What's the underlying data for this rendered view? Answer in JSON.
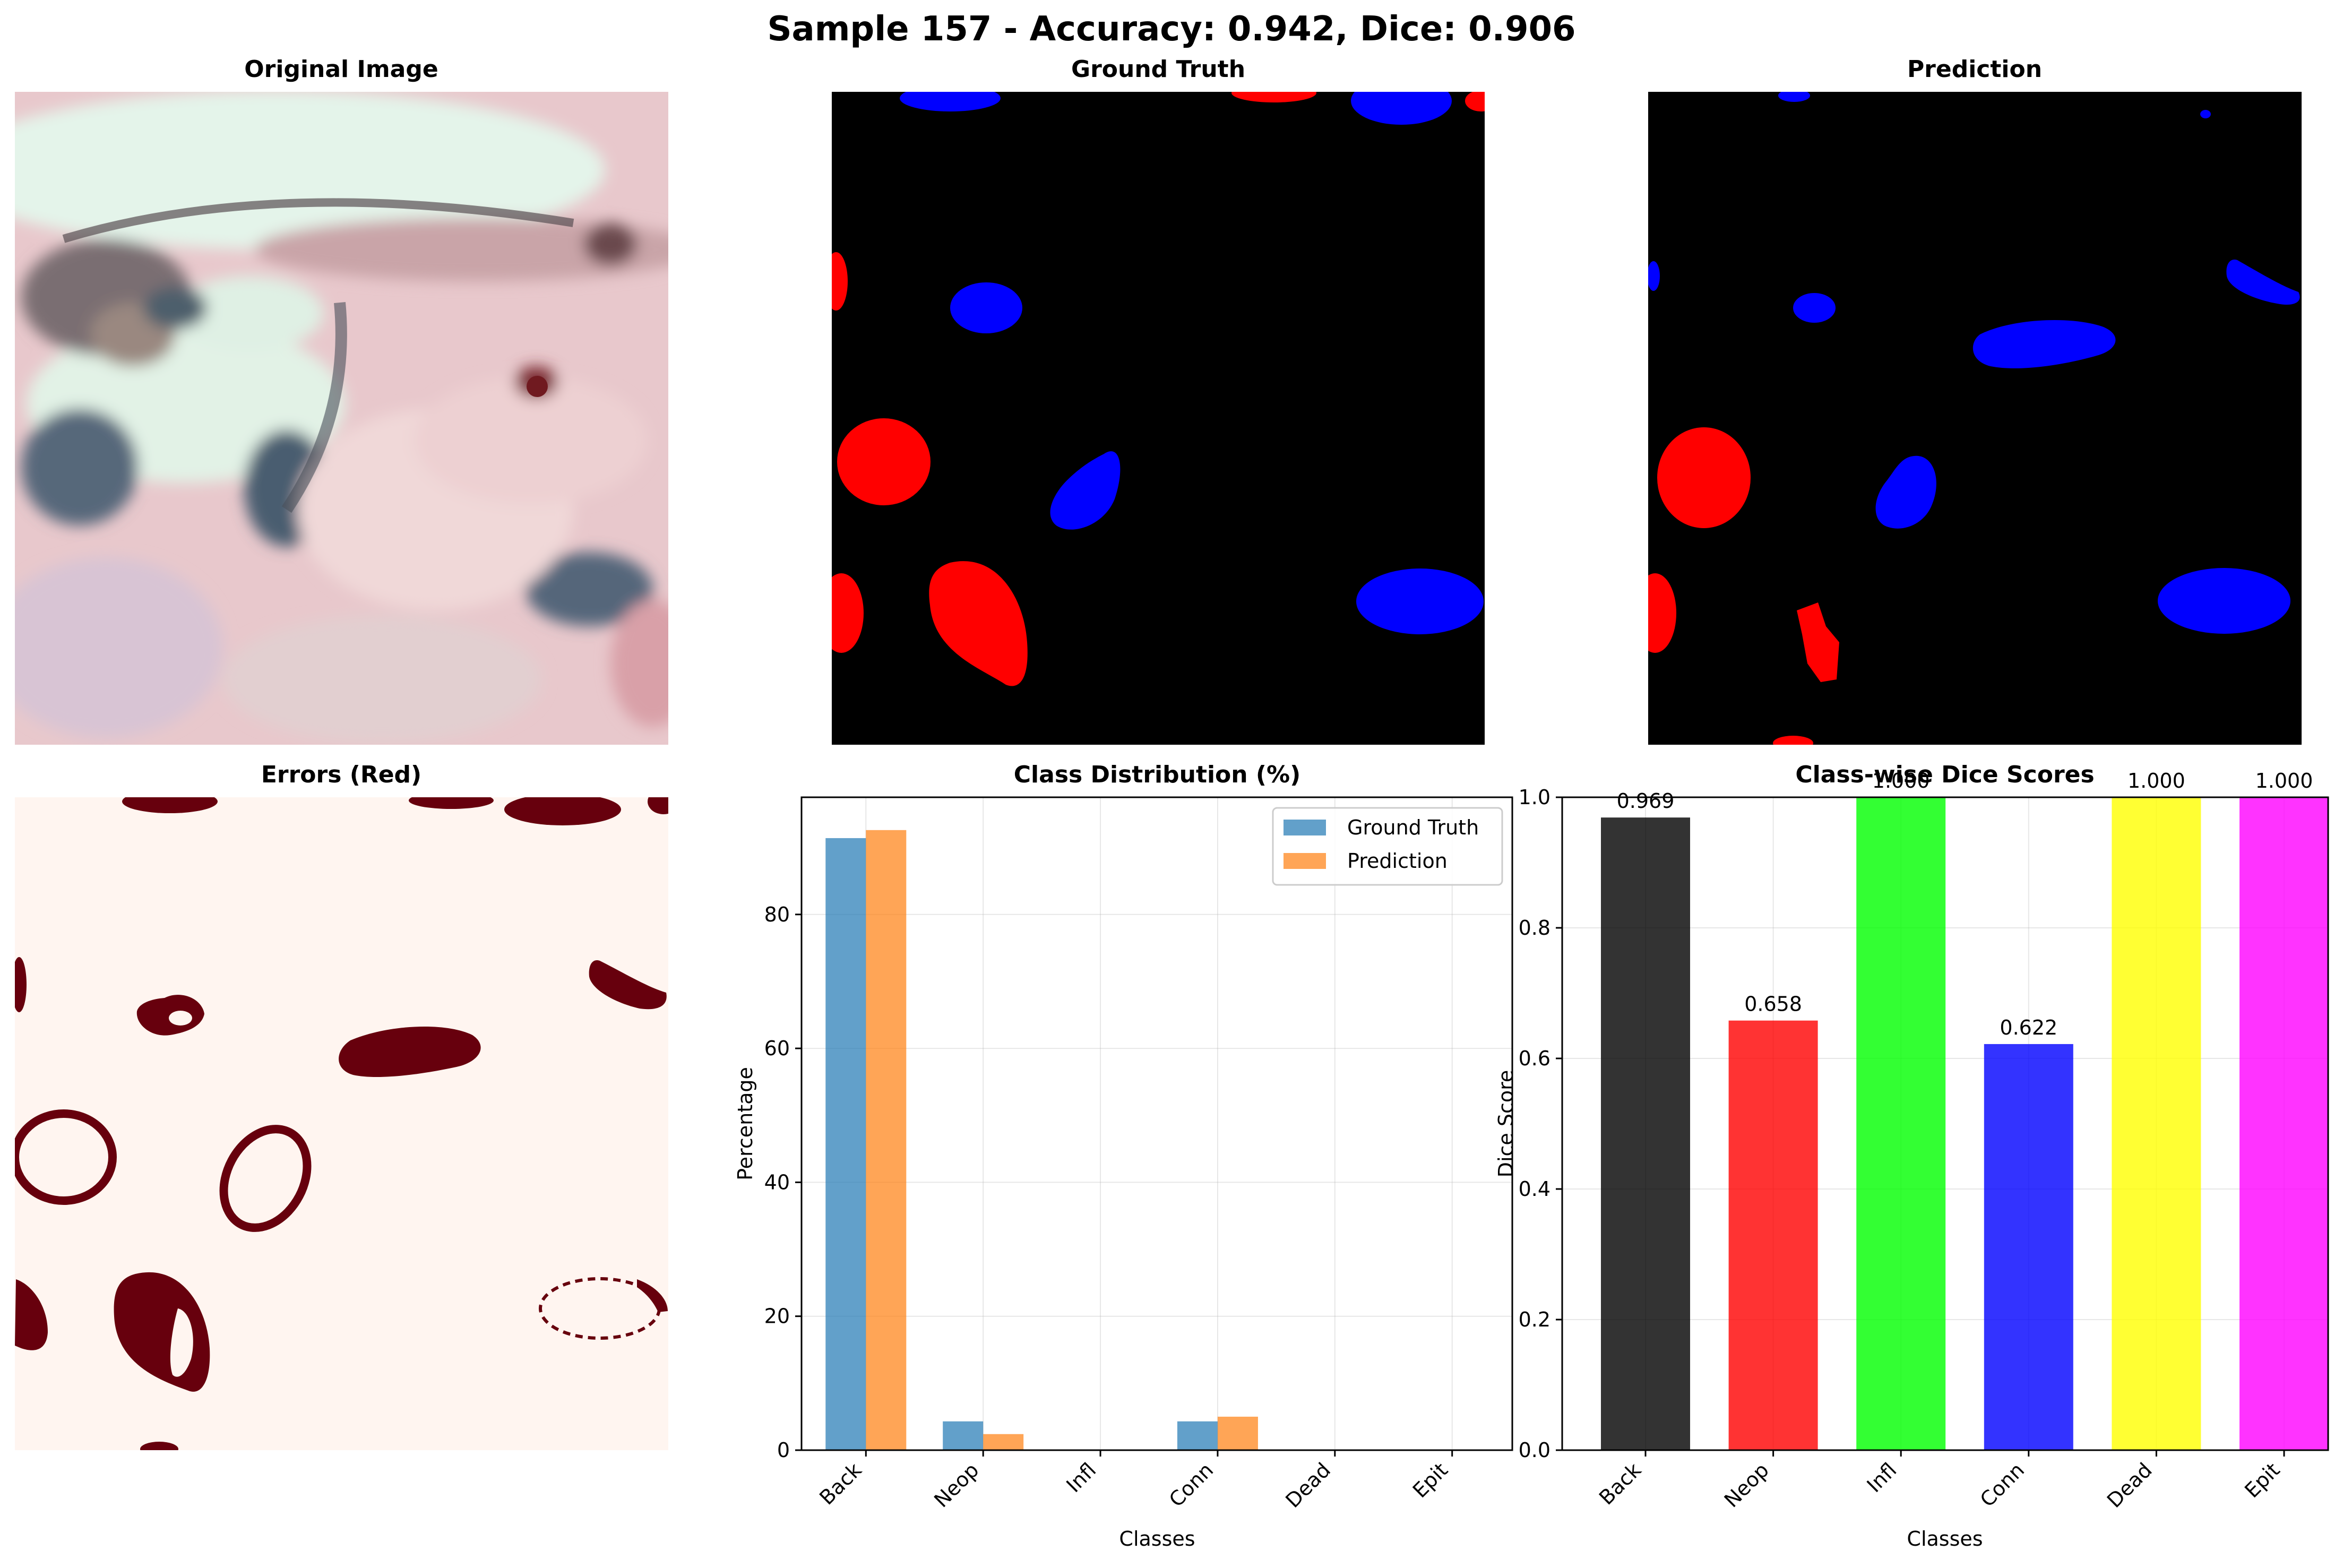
{
  "figure": {
    "suptitle": "Sample 157 - Accuracy: 0.942, Dice: 0.906"
  },
  "panels": {
    "original": {
      "title": "Original Image"
    },
    "ground_truth": {
      "title": "Ground Truth"
    },
    "prediction": {
      "title": "Prediction"
    },
    "errors": {
      "title": "Errors (Red)"
    }
  },
  "colors": {
    "background_class": "#000000",
    "neoplastic": "#ff0000",
    "connective": "#0000ff",
    "error_bg": "#fff5f0",
    "error_fg": "#67000d",
    "tissue_pink": "#e8c4c4",
    "tissue_mint": "#e6f5ea",
    "tissue_blue": "#5a6a7a"
  },
  "chart_data": [
    {
      "type": "bar",
      "title": "Class Distribution (%)",
      "xlabel": "Classes",
      "ylabel": "Percentage",
      "categories": [
        "Back",
        "Neop",
        "Infl",
        "Conn",
        "Dead",
        "Epit"
      ],
      "ylim": [
        0,
        97.5
      ],
      "yticks": [
        0,
        20,
        40,
        60,
        80
      ],
      "grid": true,
      "legend_position": "upper right",
      "series": [
        {
          "name": "Ground Truth",
          "color": "#1f77b4",
          "values": [
            91.4,
            4.3,
            0.0,
            4.3,
            0.0,
            0.0
          ]
        },
        {
          "name": "Prediction",
          "color": "#ff7f0e",
          "values": [
            92.6,
            2.4,
            0.0,
            5.0,
            0.0,
            0.0
          ]
        }
      ]
    },
    {
      "type": "bar",
      "title": "Class-wise Dice Scores",
      "xlabel": "Classes",
      "ylabel": "Dice Score",
      "categories": [
        "Back",
        "Neop",
        "Infl",
        "Conn",
        "Dead",
        "Epit"
      ],
      "values": [
        0.969,
        0.658,
        1.0,
        0.622,
        1.0,
        1.0
      ],
      "value_labels": [
        "0.969",
        "0.658",
        "1.000",
        "0.622",
        "1.000",
        "1.000"
      ],
      "bar_colors": [
        "#000000",
        "#ff0000",
        "#00ff00",
        "#0000ff",
        "#ffff00",
        "#ff00ff"
      ],
      "ylim": [
        0,
        1.0
      ],
      "yticks": [
        "0.0",
        "0.2",
        "0.4",
        "0.6",
        "0.8",
        "1.0"
      ],
      "grid": true
    }
  ]
}
